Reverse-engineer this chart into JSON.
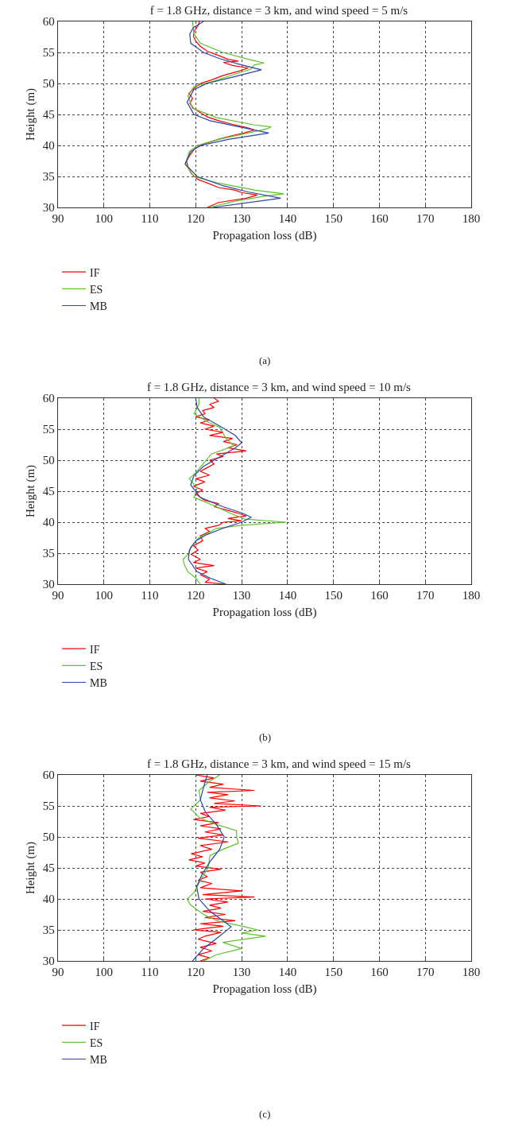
{
  "chart_data": [
    {
      "type": "line",
      "title": "f = 1.8 GHz, distance = 3 km, and wind speed = 5 m/s",
      "xlabel": "Propagation loss (dB)",
      "ylabel": "Height (m)",
      "xlim": [
        90,
        180
      ],
      "xticks": [
        90,
        100,
        110,
        120,
        130,
        140,
        150,
        160,
        170,
        180
      ],
      "ylim": [
        30,
        60
      ],
      "yticks": [
        30,
        35,
        40,
        45,
        50,
        55,
        60
      ],
      "grid": true,
      "legend": "bottom left",
      "annotations": [
        "(a)"
      ],
      "series": [
        {
          "name": "IF",
          "color": "#ff0000",
          "x": [
            122.5,
            125,
            131,
            133.4,
            130,
            128.5,
            125,
            123,
            120.5,
            119,
            118.3,
            118,
            118.8,
            119.8,
            122,
            125,
            128,
            130.5,
            132.8,
            131,
            128,
            125,
            122.5,
            121,
            119.5,
            118.7,
            119.3,
            118.5,
            119.6,
            121,
            123.5,
            126,
            129.5,
            131.4,
            128,
            126,
            129.3,
            127,
            125,
            122.5,
            121,
            120,
            119.5,
            119.7,
            120.5,
            120.8
          ],
          "values": [
            30,
            30.8,
            31.5,
            32,
            32.4,
            32.8,
            33.2,
            33.8,
            34.5,
            35.5,
            36.5,
            37.5,
            38.5,
            39.5,
            40.3,
            41,
            41.6,
            42,
            42.5,
            42.9,
            43.4,
            44,
            44.6,
            45.3,
            46,
            46.8,
            47.6,
            48.4,
            49.2,
            50,
            50.6,
            51.3,
            52,
            52.5,
            52.9,
            53.4,
            53.6,
            53.9,
            54.5,
            55.2,
            56,
            56.8,
            57.6,
            58.5,
            59.3,
            60
          ]
        },
        {
          "name": "ES",
          "color": "#5cc22e",
          "x": [
            122.8,
            128.6,
            134.9,
            139.2,
            132.8,
            124.5,
            119.6,
            117.7,
            118.6,
            120.3,
            125.2,
            131.4,
            135.6,
            136.4,
            132.8,
            124.5,
            119.3,
            118.3,
            119.6,
            124.5,
            128.6,
            132,
            132.8,
            134.9,
            132,
            125.9,
            121,
            119.6,
            119.3
          ],
          "values": [
            30,
            31,
            31.8,
            32.2,
            32.8,
            34,
            35,
            37,
            39,
            40,
            41,
            42,
            42.7,
            43,
            43.3,
            44.5,
            46,
            48,
            49.5,
            50.5,
            51.5,
            52.3,
            53,
            53.3,
            53.8,
            55,
            56.5,
            58,
            60
          ]
        },
        {
          "name": "MB",
          "color": "#2b45a8",
          "x": [
            123.7,
            138.5,
            131.4,
            125.9,
            120.3,
            117.7,
            118.9,
            121,
            127.3,
            135.9,
            131.4,
            123.1,
            119.6,
            118.1,
            119.6,
            122.4,
            128,
            134.3,
            130,
            125.2,
            121.7,
            118.9,
            118.7,
            119.5,
            121.7
          ],
          "values": [
            30,
            31.5,
            32.5,
            33.5,
            35,
            37,
            39,
            40,
            41,
            42,
            42.7,
            44,
            45,
            47,
            49,
            50,
            51,
            52.2,
            53,
            54,
            55,
            56.5,
            58,
            59,
            60
          ]
        }
      ]
    },
    {
      "type": "line",
      "title": "f = 1.8 GHz, distance = 3 km, and wind speed = 10 m/s",
      "xlabel": "Propagation loss (dB)",
      "ylabel": "Height (m)",
      "xlim": [
        90,
        180
      ],
      "xticks": [
        90,
        100,
        110,
        120,
        130,
        140,
        150,
        160,
        170,
        180
      ],
      "ylim": [
        30,
        60
      ],
      "yticks": [
        30,
        35,
        40,
        45,
        50,
        55,
        60
      ],
      "grid": true,
      "legend": "bottom left",
      "annotations": [
        "(b)"
      ],
      "series": [
        {
          "name": "IF",
          "color": "#ff0000",
          "x": [
            126.5,
            122,
            123,
            121,
            122.5,
            120,
            124,
            119.5,
            121,
            119,
            120.5,
            119.5,
            121.5,
            121,
            123,
            122,
            125,
            126,
            130,
            127,
            131,
            129,
            126.5,
            124,
            125,
            122,
            121,
            120,
            121.5,
            119.5,
            122,
            120,
            123,
            121,
            122.5,
            124,
            123,
            126,
            124.5,
            131,
            127,
            129,
            126,
            128,
            123,
            126,
            122,
            124,
            121,
            123,
            120,
            122,
            121.5,
            124,
            123,
            125,
            124
          ],
          "values": [
            30,
            30.3,
            30.8,
            31.5,
            32,
            32.6,
            33,
            33.5,
            34,
            34.8,
            35.5,
            36.2,
            37,
            37.8,
            38.5,
            39,
            39.5,
            40,
            40.2,
            40.6,
            41,
            41.5,
            42,
            42.5,
            43,
            43.5,
            44,
            44.6,
            45.2,
            45.8,
            46.5,
            47,
            47.6,
            48.2,
            48.8,
            49.4,
            50,
            50.6,
            51,
            51.5,
            52,
            52.5,
            53,
            53.5,
            54,
            54.5,
            55,
            55.5,
            56,
            56.5,
            57,
            57.5,
            58,
            58.5,
            59,
            59.5,
            60
          ]
        },
        {
          "name": "ES",
          "color": "#5cc22e",
          "x": [
            121,
            120,
            118.3,
            117.6,
            117.2,
            118.6,
            118.9,
            120.7,
            124.5,
            130,
            139.7,
            130.7,
            127.3,
            124.5,
            119.6,
            120.3,
            118.6,
            120,
            121.7,
            123.4,
            128.3,
            126.6,
            125.2,
            123.1,
            119.6,
            120.7,
            120.7
          ],
          "values": [
            30,
            31,
            32,
            33,
            34,
            35,
            36,
            37.5,
            39,
            39.5,
            40,
            40.5,
            41.5,
            42.5,
            44,
            45.5,
            47,
            48,
            49.5,
            51,
            52.3,
            53.5,
            55.3,
            56,
            57.5,
            59,
            60
          ]
        },
        {
          "name": "MB",
          "color": "#2b45a8",
          "x": [
            126.6,
            123.1,
            120.3,
            118.4,
            118.6,
            120,
            122.4,
            125.9,
            130,
            132.1,
            130,
            125.9,
            121,
            118.9,
            119.6,
            121.7,
            125.2,
            128.6,
            130,
            128.6,
            125.2,
            121.7,
            120.3,
            120
          ],
          "values": [
            30,
            31,
            32,
            34,
            35.5,
            37,
            38,
            39,
            40,
            40.8,
            41.5,
            42.5,
            44,
            46,
            47.5,
            49,
            50.5,
            52,
            52.8,
            54,
            55.5,
            57,
            58.5,
            60
          ]
        }
      ]
    },
    {
      "type": "line",
      "title": "f = 1.8 GHz, distance = 3 km, and wind speed = 15 m/s",
      "xlabel": "Propagation loss (dB)",
      "ylabel": "Height (m)",
      "xlim": [
        90,
        180
      ],
      "xticks": [
        90,
        100,
        110,
        120,
        130,
        140,
        150,
        160,
        170,
        180
      ],
      "ylim": [
        30,
        60
      ],
      "yticks": [
        30,
        35,
        40,
        45,
        50,
        55,
        60
      ],
      "grid": true,
      "legend": "bottom left",
      "annotations": [
        "(c)"
      ],
      "series": [
        {
          "name": "IF",
          "color": "#ff0000",
          "x": [
            121,
            123,
            120.5,
            123.5,
            121,
            124.5,
            120.5,
            122,
            125.5,
            119.5,
            126,
            121,
            128.6,
            122,
            126.5,
            121.5,
            125.5,
            123,
            127,
            122,
            132.8,
            121.5,
            130,
            121,
            123.5,
            120.5,
            122.5,
            121,
            125.5,
            120,
            122,
            118.5,
            121.5,
            119,
            123.5,
            121,
            127,
            120.5,
            126,
            122,
            125.5,
            121,
            125,
            119.5,
            123,
            121,
            126.5,
            123,
            134.2,
            124,
            128.5,
            123,
            127,
            122.5,
            132.8,
            123,
            126,
            121,
            124,
            120
          ],
          "values": [
            30,
            30.5,
            31,
            31.6,
            32.2,
            32.8,
            33.5,
            34,
            34.6,
            35,
            35.6,
            36,
            36.5,
            37,
            37.5,
            38,
            38.5,
            39,
            39.5,
            40,
            40.3,
            40.7,
            41.3,
            41.8,
            42.5,
            43,
            43.6,
            44.3,
            44.8,
            45.3,
            45.8,
            46.3,
            46.8,
            47.3,
            48,
            48.6,
            49.2,
            49.8,
            50.3,
            50.8,
            51.3,
            51.8,
            52.3,
            52.8,
            53.3,
            53.8,
            54.3,
            54.8,
            55,
            55.4,
            55.8,
            56.3,
            56.8,
            57.2,
            57.5,
            58,
            58.5,
            59,
            59.5,
            60
          ]
        },
        {
          "name": "ES",
          "color": "#5cc22e",
          "x": [
            121.7,
            124.5,
            130,
            125.9,
            135.2,
            130,
            133.5,
            130.7,
            124.5,
            121.7,
            118.9,
            118.1,
            119.6,
            121,
            122.7,
            123.1,
            125.9,
            129.3,
            128.9,
            128.9,
            124.5,
            121,
            118.9,
            121,
            120.7,
            123.1,
            125.2
          ],
          "values": [
            30,
            31,
            32,
            33,
            34,
            34.5,
            35,
            35.5,
            36.5,
            37.5,
            39,
            40,
            41,
            43,
            45,
            47,
            48,
            49,
            50,
            51,
            52,
            53,
            54.5,
            56,
            57.5,
            59,
            60
          ]
        },
        {
          "name": "MB",
          "color": "#2b45a8",
          "x": [
            119.3,
            121.7,
            125.2,
            127.7,
            125.9,
            123.1,
            120.7,
            120.2,
            121.4,
            123.1,
            125.2,
            126.2,
            124.5,
            122.1,
            121,
            121.7,
            122.5
          ],
          "values": [
            30,
            32,
            34,
            35.5,
            36.5,
            38,
            40,
            42,
            44,
            46,
            48,
            50,
            52,
            54,
            56,
            58,
            60
          ]
        }
      ]
    }
  ]
}
